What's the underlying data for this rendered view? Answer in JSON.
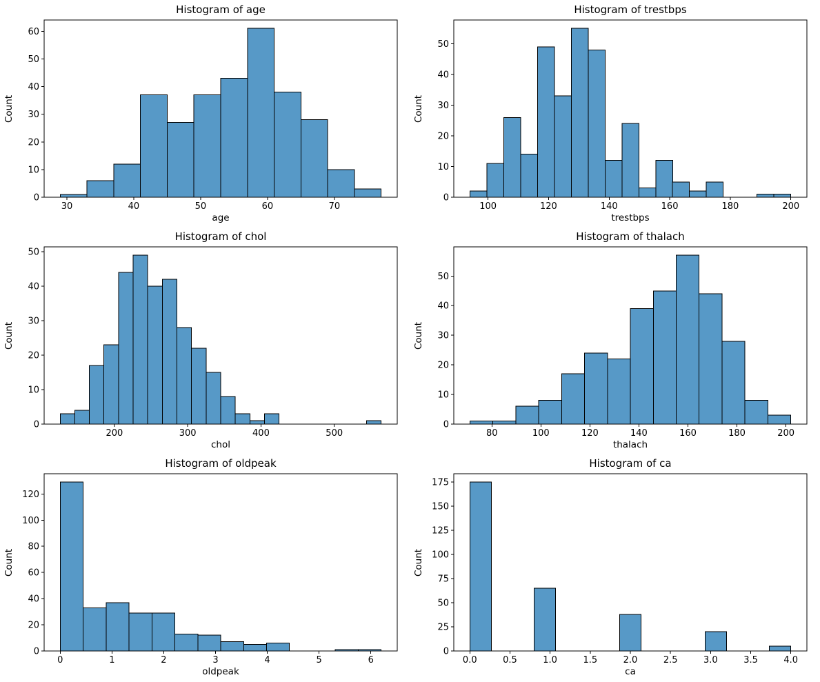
{
  "figure": {
    "background": "#ffffff",
    "rows": 3,
    "cols": 2,
    "description": "Grid of six histograms"
  },
  "style": {
    "bar_fill": "#5799c7",
    "bar_edge": "#000000",
    "axis_color": "#000000",
    "text_color": "#000000"
  },
  "chart_data": [
    {
      "type": "bar",
      "variant": "histogram",
      "title": "Histogram of age",
      "xlabel": "age",
      "ylabel": "Count",
      "bin_start": 29,
      "bin_width": 4,
      "values": [
        1,
        6,
        12,
        37,
        27,
        37,
        43,
        61,
        38,
        28,
        10,
        3
      ],
      "xlim": [
        26.6,
        79.4
      ],
      "ylim": [
        0,
        64.05
      ],
      "xticks": [
        30,
        40,
        50,
        60,
        70
      ],
      "xtick_labels": [
        "30",
        "40",
        "50",
        "60",
        "70"
      ],
      "yticks": [
        0,
        10,
        20,
        30,
        40,
        50,
        60
      ],
      "ytick_labels": [
        "0",
        "10",
        "20",
        "30",
        "40",
        "50",
        "60"
      ],
      "grid": false,
      "legend": false
    },
    {
      "type": "bar",
      "variant": "histogram",
      "title": "Histogram of trestbps",
      "xlabel": "trestbps",
      "ylabel": "Count",
      "bin_start": 94,
      "bin_width": 5.578947,
      "values": [
        2,
        11,
        26,
        14,
        49,
        33,
        55,
        48,
        12,
        24,
        3,
        12,
        5,
        2,
        5,
        0,
        0,
        1,
        1
      ],
      "xlim": [
        88.7,
        205.3
      ],
      "ylim": [
        0,
        57.75
      ],
      "xticks": [
        100,
        120,
        140,
        160,
        180,
        200
      ],
      "xtick_labels": [
        "100",
        "120",
        "140",
        "160",
        "180",
        "200"
      ],
      "yticks": [
        0,
        10,
        20,
        30,
        40,
        50
      ],
      "ytick_labels": [
        "0",
        "10",
        "20",
        "30",
        "40",
        "50"
      ],
      "grid": false,
      "legend": false
    },
    {
      "type": "bar",
      "variant": "histogram",
      "title": "Histogram of chol",
      "xlabel": "chol",
      "ylabel": "Count",
      "bin_start": 126,
      "bin_width": 19.909091,
      "values": [
        3,
        4,
        17,
        23,
        44,
        49,
        40,
        42,
        28,
        22,
        15,
        8,
        3,
        1,
        3,
        0,
        0,
        0,
        0,
        0,
        0,
        1
      ],
      "xlim": [
        104.1,
        585.9
      ],
      "ylim": [
        0,
        51.45
      ],
      "xticks": [
        200,
        300,
        400,
        500
      ],
      "xtick_labels": [
        "200",
        "300",
        "400",
        "500"
      ],
      "yticks": [
        0,
        10,
        20,
        30,
        40,
        50
      ],
      "ytick_labels": [
        "0",
        "10",
        "20",
        "30",
        "40",
        "50"
      ],
      "grid": false,
      "legend": false
    },
    {
      "type": "bar",
      "variant": "histogram",
      "title": "Histogram of thalach",
      "xlabel": "thalach",
      "ylabel": "Count",
      "bin_start": 71,
      "bin_width": 9.357143,
      "values": [
        1,
        1,
        6,
        8,
        17,
        24,
        22,
        39,
        45,
        57,
        44,
        28,
        8,
        3
      ],
      "xlim": [
        64.45,
        208.55
      ],
      "ylim": [
        0,
        59.85
      ],
      "xticks": [
        80,
        100,
        120,
        140,
        160,
        180,
        200
      ],
      "xtick_labels": [
        "80",
        "100",
        "120",
        "140",
        "160",
        "180",
        "200"
      ],
      "yticks": [
        0,
        10,
        20,
        30,
        40,
        50
      ],
      "ytick_labels": [
        "0",
        "10",
        "20",
        "30",
        "40",
        "50"
      ],
      "grid": false,
      "legend": false
    },
    {
      "type": "bar",
      "variant": "histogram",
      "title": "Histogram of oldpeak",
      "xlabel": "oldpeak",
      "ylabel": "Count",
      "bin_start": 0,
      "bin_width": 0.442857,
      "values": [
        129,
        33,
        37,
        29,
        29,
        13,
        12,
        7,
        5,
        6,
        0,
        0,
        1,
        1
      ],
      "xlim": [
        -0.31,
        6.51
      ],
      "ylim": [
        0,
        135.45
      ],
      "xticks": [
        0,
        1,
        2,
        3,
        4,
        5,
        6
      ],
      "xtick_labels": [
        "0",
        "1",
        "2",
        "3",
        "4",
        "5",
        "6"
      ],
      "yticks": [
        0,
        20,
        40,
        60,
        80,
        100,
        120
      ],
      "ytick_labels": [
        "0",
        "20",
        "40",
        "60",
        "80",
        "100",
        "120"
      ],
      "grid": false,
      "legend": false
    },
    {
      "type": "bar",
      "variant": "histogram",
      "title": "Histogram of ca",
      "xlabel": "ca",
      "ylabel": "Count",
      "bin_start": 0,
      "bin_width": 0.266667,
      "values": [
        175,
        0,
        0,
        65,
        0,
        0,
        0,
        38,
        0,
        0,
        0,
        20,
        0,
        0,
        5
      ],
      "xlim": [
        -0.2,
        4.2
      ],
      "ylim": [
        0,
        183.75
      ],
      "xticks": [
        0,
        0.5,
        1,
        1.5,
        2,
        2.5,
        3,
        3.5,
        4
      ],
      "xtick_labels": [
        "0.0",
        "0.5",
        "1.0",
        "1.5",
        "2.0",
        "2.5",
        "3.0",
        "3.5",
        "4.0"
      ],
      "yticks": [
        0,
        25,
        50,
        75,
        100,
        125,
        150,
        175
      ],
      "ytick_labels": [
        "0",
        "25",
        "50",
        "75",
        "100",
        "125",
        "150",
        "175"
      ],
      "grid": false,
      "legend": false
    }
  ]
}
